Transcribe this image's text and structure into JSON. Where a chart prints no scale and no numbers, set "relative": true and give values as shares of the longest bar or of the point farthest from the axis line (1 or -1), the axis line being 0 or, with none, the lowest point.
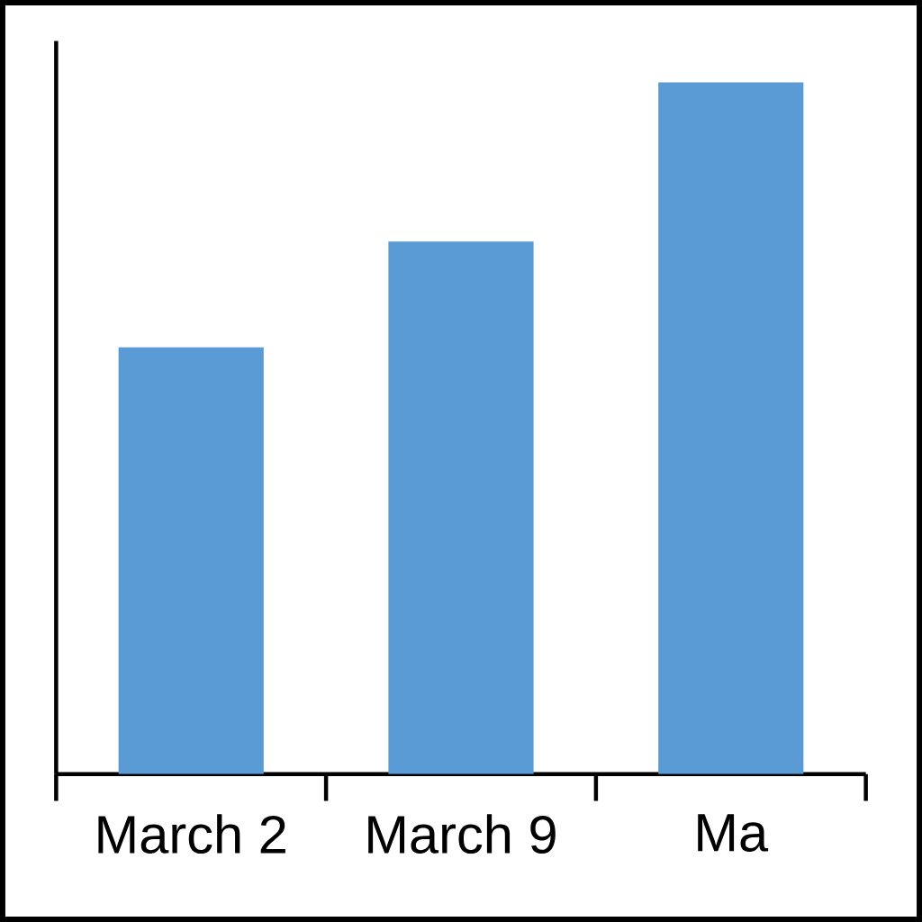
{
  "chart_data": {
    "type": "bar",
    "relative": true,
    "categories": [
      "March 2",
      "March 9",
      "Ma"
    ],
    "values": [
      0.617,
      0.77,
      1
    ],
    "color": "#5b9bd5"
  }
}
